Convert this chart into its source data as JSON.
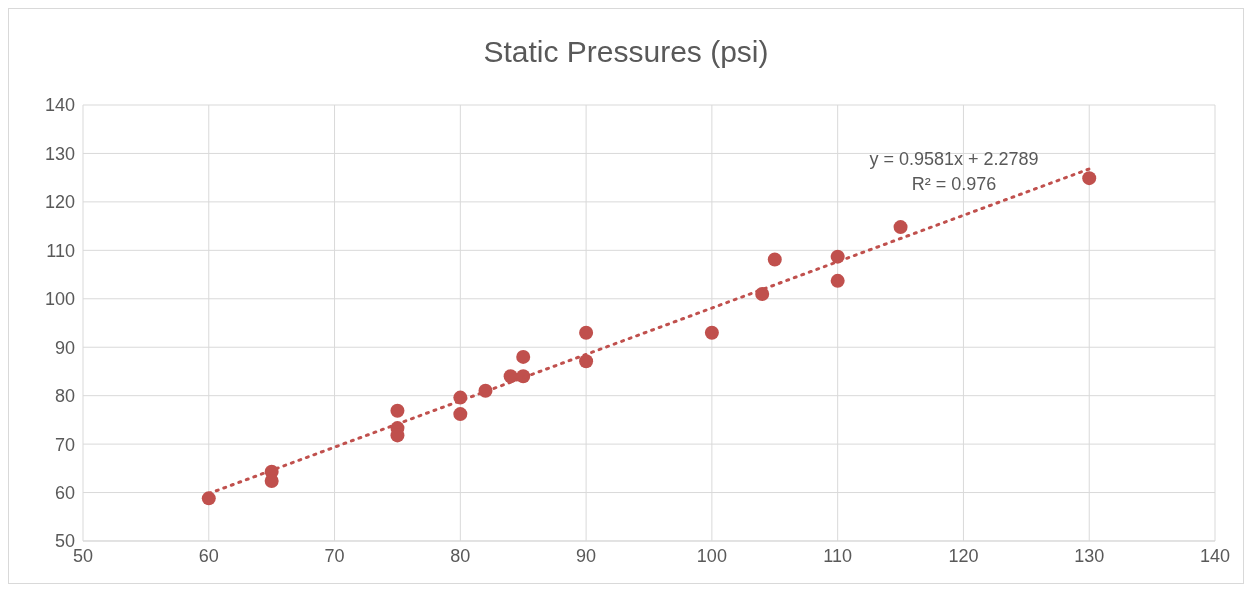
{
  "chart_data": {
    "type": "scatter",
    "title": "Static Pressures (psi)",
    "xlim": [
      50,
      140
    ],
    "xticks": [
      50,
      60,
      70,
      80,
      90,
      100,
      110,
      120,
      130,
      140
    ],
    "ylim": [
      50,
      140
    ],
    "yticks": [
      50,
      60,
      70,
      80,
      90,
      100,
      110,
      120,
      130,
      140
    ],
    "grid": true,
    "legend": false,
    "marker": "circle",
    "series": [
      {
        "color": "#c0504d",
        "x": [
          60,
          65,
          65,
          75,
          75,
          75,
          80,
          80,
          82,
          84,
          85,
          85,
          90,
          90,
          100,
          104,
          105,
          110,
          110,
          115,
          130
        ],
        "values": [
          58.8,
          64.3,
          62.4,
          76.9,
          73.3,
          71.8,
          79.6,
          76.2,
          81,
          84,
          84,
          88,
          93,
          87.1,
          93,
          101,
          108.1,
          108.7,
          103.7,
          114.8,
          124.9
        ]
      },
      {
        "type": "line",
        "color": "#c0504d",
        "line_style": "dotted",
        "marker": "none",
        "x": [
          60,
          130
        ],
        "values": [
          59.8,
          126.8
        ]
      }
    ],
    "annotations": [
      "y = 0.9581x + 2.2789",
      "R² = 0.976"
    ]
  }
}
